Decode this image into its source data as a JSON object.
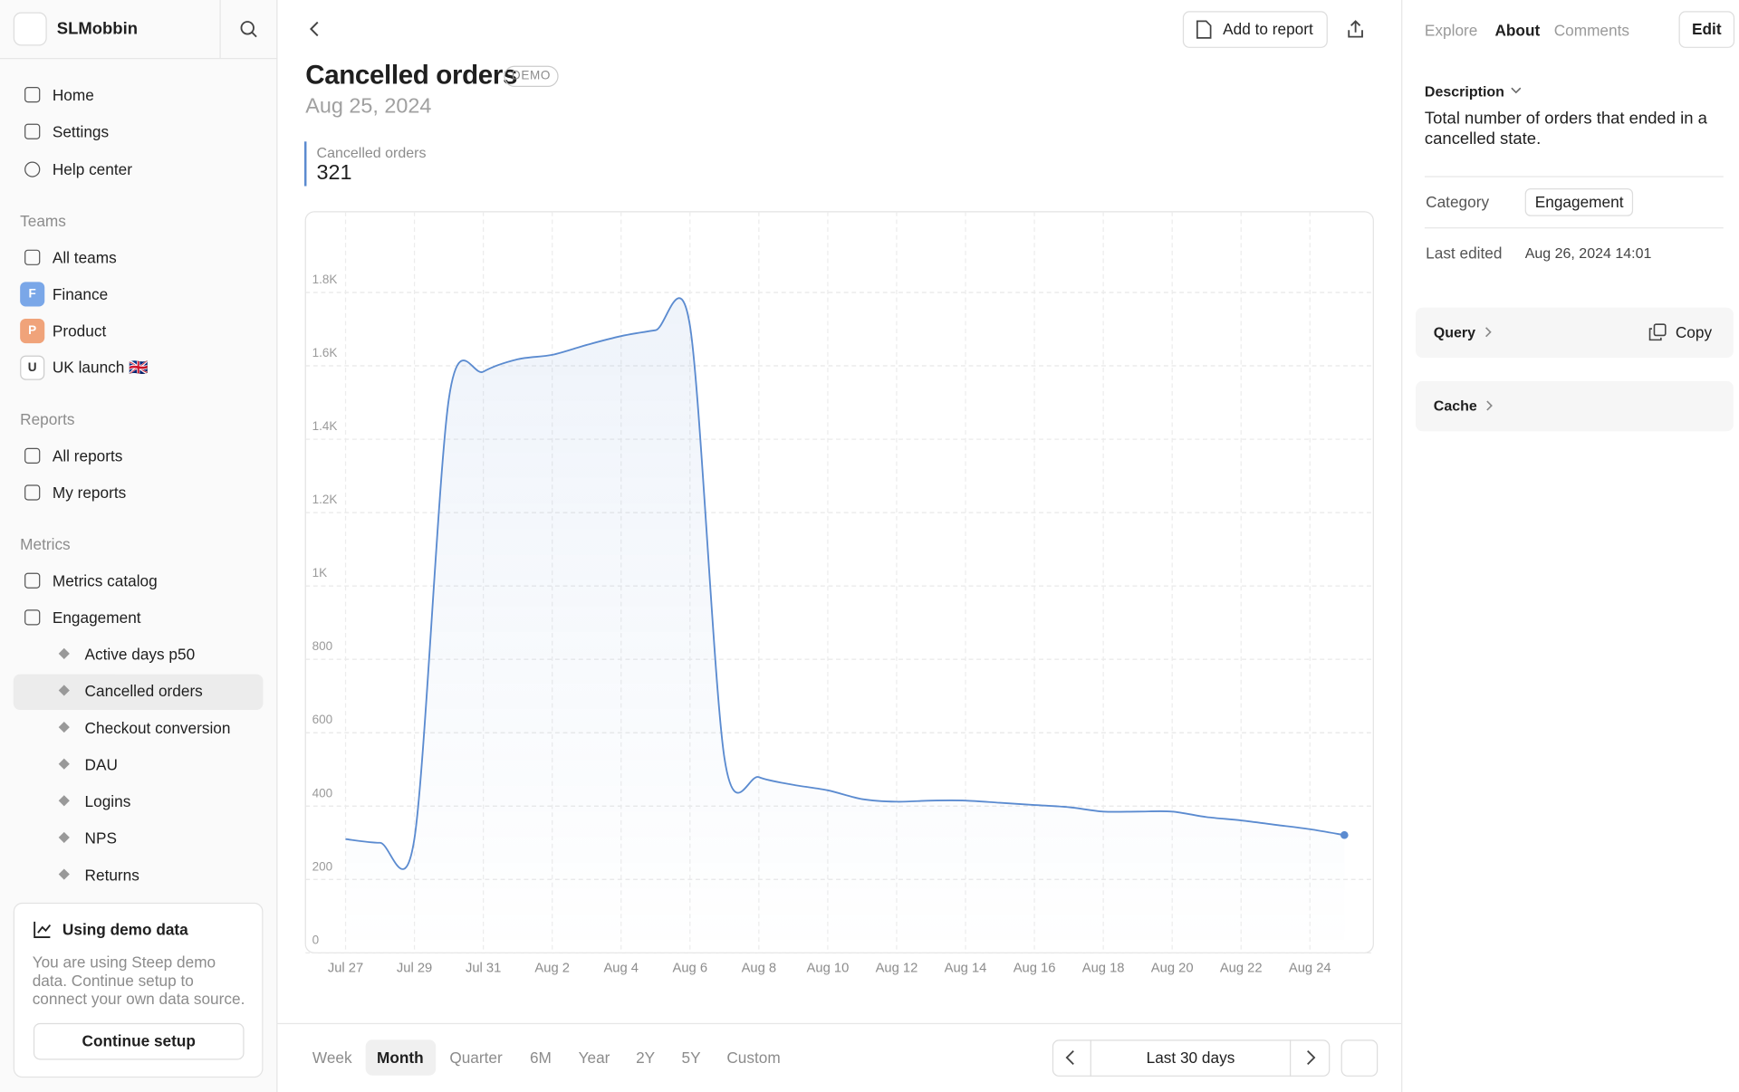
{
  "sidebar": {
    "workspace": "SLMobbin",
    "nav": [
      "Home",
      "Settings",
      "Help center"
    ],
    "teams": {
      "title": "Teams",
      "items": [
        "All teams",
        "Finance",
        "Product",
        "UK launch 🇬🇧"
      ],
      "badges": [
        "F",
        "P",
        "U"
      ]
    },
    "reports": {
      "title": "Reports",
      "items": [
        "All reports",
        "My reports"
      ]
    },
    "metrics": {
      "title": "Metrics",
      "items": [
        "Metrics catalog",
        "Engagement"
      ],
      "engagement": [
        "Active days p50",
        "Cancelled orders",
        "Checkout conversion",
        "DAU",
        "Logins",
        "NPS",
        "Returns"
      ]
    },
    "demo": {
      "title": "Using demo data",
      "text": "You are using Steep demo data. Continue setup to connect your own data source.",
      "button": "Continue setup"
    }
  },
  "header": {
    "add_to_report": "Add to report",
    "title": "Cancelled orders",
    "badge": "DEMO",
    "date": "Aug 25, 2024",
    "metric_value": 321
  },
  "chart_data": {
    "type": "line",
    "categories": [
      "Jul 27",
      null,
      "Jul 29",
      null,
      "Jul 31",
      null,
      "Aug 2",
      null,
      "Aug 4",
      null,
      "Aug 6",
      null,
      "Aug 8",
      null,
      "Aug 10",
      null,
      "Aug 12",
      null,
      "Aug 14",
      null,
      "Aug 16",
      null,
      "Aug 18",
      null,
      "Aug 20",
      null,
      "Aug 22",
      null,
      "Aug 24",
      null
    ],
    "series": [
      {
        "name": "Cancelled orders",
        "color": "#5b8bd0",
        "values": [
          310,
          300,
          312,
          1511,
          1584,
          1618,
          1630,
          1657,
          1681,
          1697,
          1709,
          531,
          479,
          458,
          443,
          419,
          412,
          415,
          415,
          409,
          403,
          397,
          385,
          385,
          385,
          370,
          361,
          349,
          337,
          321
        ]
      }
    ],
    "ylim": [
      0,
      2020
    ],
    "yticks": [
      0,
      200,
      400,
      600,
      800,
      {
        "value": 1000,
        "label": "1K"
      },
      {
        "value": 1200,
        "label": "1.2K"
      },
      {
        "value": 1400,
        "label": "1.4K"
      },
      {
        "value": 1600,
        "label": "1.6K"
      },
      {
        "value": 1800,
        "label": "1.8K"
      }
    ],
    "grid": true
  },
  "range": {
    "periods": [
      "Week",
      "Month",
      "Quarter",
      "6M",
      "Year",
      "2Y",
      "5Y",
      "Custom"
    ],
    "label": "Last 30 days"
  },
  "panel": {
    "tabs": [
      "Explore",
      "About",
      "Comments"
    ],
    "edit": "Edit",
    "description_title": "Description",
    "description": "Total number of orders that ended in a cancelled state.",
    "fields": [
      [
        "Category",
        "Engagement"
      ],
      [
        "Last edited",
        "Aug 26, 2024 14:01"
      ]
    ],
    "query": "Query",
    "copy": "Copy",
    "cache": "Cache"
  }
}
